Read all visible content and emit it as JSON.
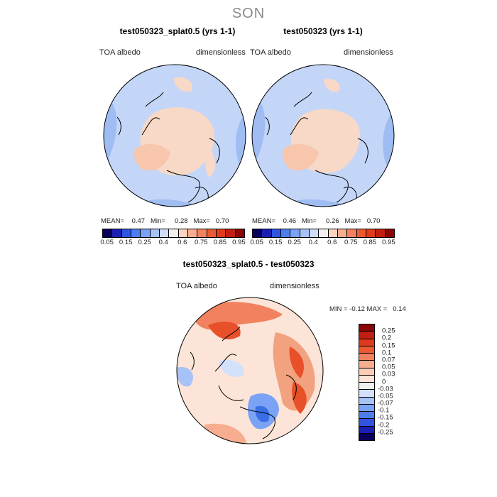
{
  "figure": {
    "title": "SON"
  },
  "panels": [
    {
      "title": "test050323_splat0.5 (yrs 1-1)",
      "var_label": "TOA albedo",
      "units_label": "dimensionless",
      "stats": {
        "mean_label": "MEAN=",
        "mean": "0.47",
        "min_label": "Min=",
        "min": "0.28",
        "max_label": "Max=",
        "max": "0.70"
      }
    },
    {
      "title": "test050323 (yrs 1-1)",
      "var_label": "TOA albedo",
      "units_label": "dimensionless",
      "stats": {
        "mean_label": "MEAN=",
        "mean": "0.46",
        "min_label": "Min=",
        "min": "0.26",
        "max_label": "Max=",
        "max": "0.70"
      }
    }
  ],
  "abs_colorbar": {
    "ticks": [
      "0.05",
      "0.15",
      "0.25",
      "0.4",
      "0.6",
      "0.75",
      "0.85",
      "0.95"
    ],
    "colors": [
      "#08005a",
      "#1a1fb0",
      "#2f55e0",
      "#4c7ef0",
      "#7aa3f5",
      "#a6c2f7",
      "#cfdcfa",
      "#f2f0ee",
      "#fbd4c2",
      "#f7ad90",
      "#f2825f",
      "#ec5a33",
      "#e03a1c",
      "#c01e10",
      "#8a0606"
    ]
  },
  "diff_panel": {
    "title": "test050323_splat0.5 - test050323",
    "var_label": "TOA albedo",
    "units_label": "dimensionless",
    "stats": {
      "min_label": "MIN =",
      "min": "-0.12",
      "max_label": "MAX =",
      "max": "0.14"
    }
  },
  "diff_colorbar": {
    "ticks": [
      "0.25",
      "0.2",
      "0.15",
      "0.1",
      "0.07",
      "0.05",
      "0.03",
      "0",
      "-0.03",
      "-0.05",
      "-0.07",
      "-0.1",
      "-0.15",
      "-0.2",
      "-0.25"
    ],
    "colors": [
      "#8a0606",
      "#c01e10",
      "#e03a1c",
      "#ec5a33",
      "#f2825f",
      "#f7ad90",
      "#fbcdb6",
      "#fce4d8",
      "#f2f0ee",
      "#d3e1fa",
      "#a6c2f7",
      "#7aa3f5",
      "#4c7ef0",
      "#2f55e0",
      "#1a1fb0",
      "#08005a"
    ]
  },
  "colors": {
    "ocean_light": "#c4d6f8",
    "ocean_mid": "#9fbdf3",
    "land_warm": "#f8d8c6",
    "warm_strong": "#f2a27e",
    "red": "#e8502a",
    "blue": "#3a6fe6"
  }
}
